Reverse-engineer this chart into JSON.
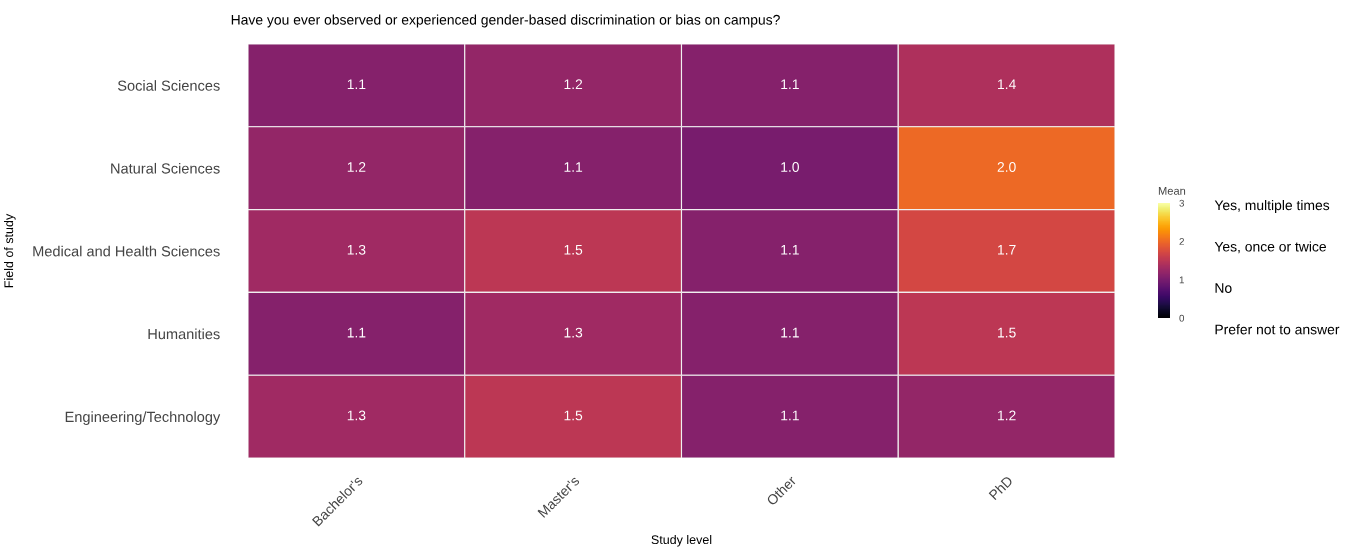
{
  "chart_data": {
    "type": "heatmap",
    "title": "Have you ever observed or experienced gender-based discrimination or bias on campus?",
    "xlabel": "Study level",
    "ylabel": "Field of study",
    "clabel": "Mean",
    "categories": [
      "Bachelor's",
      "Master's",
      "Other",
      "PhD"
    ],
    "y_categories": [
      "Social Sciences",
      "Natural Sciences",
      "Medical and Health Sciences",
      "Humanities",
      "Engineering/Technology"
    ],
    "cells": [
      [
        1.1,
        1.2,
        1.1,
        1.4
      ],
      [
        1.2,
        1.1,
        1.0,
        2.0
      ],
      [
        1.3,
        1.5,
        1.1,
        1.7
      ],
      [
        1.1,
        1.3,
        1.1,
        1.5
      ],
      [
        1.3,
        1.5,
        1.1,
        1.2
      ]
    ],
    "cell_labels": [
      [
        "1.1",
        "1.2",
        "1.1",
        "1.4"
      ],
      [
        "1.2",
        "1.1",
        "1.0",
        "2.0"
      ],
      [
        "1.3",
        "1.5",
        "1.1",
        "1.7"
      ],
      [
        "1.1",
        "1.3",
        "1.1",
        "1.5"
      ],
      [
        "1.3",
        "1.5",
        "1.1",
        "1.2"
      ]
    ],
    "clim": [
      0,
      3
    ],
    "cticks": [
      0,
      1,
      2,
      3
    ],
    "annotations": [
      "Yes, multiple times",
      "Yes, once or twice",
      "No",
      "Prefer not to answer"
    ]
  }
}
